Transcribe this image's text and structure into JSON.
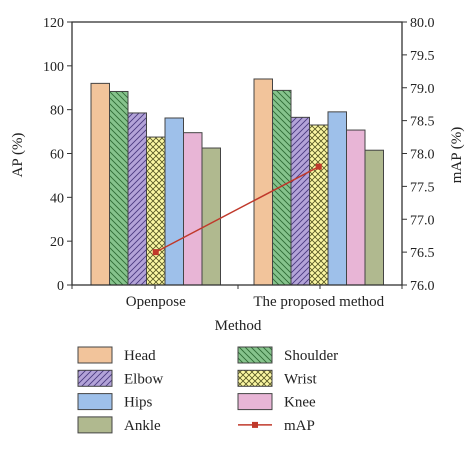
{
  "chart_data": {
    "type": "bar",
    "xlabel": "Method",
    "ylabel": "AP (%)",
    "y2label": "mAP (%)",
    "ylim": [
      0,
      120
    ],
    "y2lim": [
      76.0,
      80.0
    ],
    "yticks": [
      "0",
      "20",
      "40",
      "60",
      "80",
      "100",
      "120"
    ],
    "y2ticks": [
      "76.0",
      "76.5",
      "77.0",
      "77.5",
      "78.0",
      "78.5",
      "79.0",
      "79.5",
      "80.0"
    ],
    "categories": [
      "Openpose",
      "The proposed method"
    ],
    "series": [
      {
        "name": "Head",
        "values": [
          92.0,
          94.0
        ],
        "color": "#f2c49b",
        "pattern": "solid"
      },
      {
        "name": "Shoulder",
        "values": [
          88.3,
          88.8
        ],
        "color": "#86c38c",
        "pattern": "hatch-back"
      },
      {
        "name": "Elbow",
        "values": [
          78.5,
          76.5
        ],
        "color": "#b3a3d8",
        "pattern": "hatch-fwd"
      },
      {
        "name": "Wrist",
        "values": [
          67.5,
          73.0
        ],
        "color": "#fbf7a3",
        "pattern": "crosshatch"
      },
      {
        "name": "Hips",
        "values": [
          76.2,
          79.0
        ],
        "color": "#9ec0ea",
        "pattern": "solid"
      },
      {
        "name": "Knee",
        "values": [
          69.5,
          70.7
        ],
        "color": "#e8b5d6",
        "pattern": "solid"
      },
      {
        "name": "Ankle",
        "values": [
          62.5,
          61.5
        ],
        "color": "#b0b98f",
        "pattern": "solid"
      }
    ],
    "line_series": {
      "name": "mAP",
      "values": [
        76.5,
        77.8
      ],
      "axis": "right",
      "color": "#c0392b"
    },
    "legend_position": "bottom",
    "grid": false
  }
}
